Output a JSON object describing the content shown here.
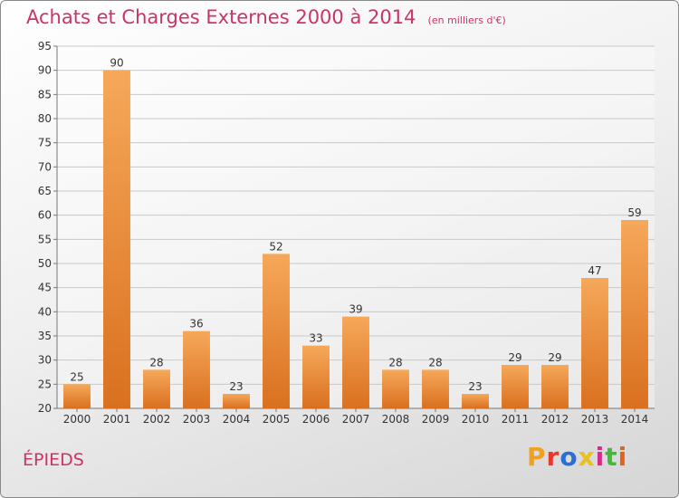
{
  "chart_data": {
    "type": "bar",
    "title": "Achats et Charges Externes 2000 à 2014",
    "subtitle": "(en milliers d'€)",
    "categories": [
      "2000",
      "2001",
      "2002",
      "2003",
      "2004",
      "2005",
      "2006",
      "2007",
      "2008",
      "2009",
      "2010",
      "2011",
      "2012",
      "2013",
      "2014"
    ],
    "values": [
      25,
      90,
      28,
      36,
      23,
      52,
      33,
      39,
      28,
      28,
      23,
      29,
      29,
      47,
      59
    ],
    "ylim": [
      20,
      95
    ],
    "yticks": [
      20,
      25,
      30,
      35,
      40,
      45,
      50,
      55,
      60,
      65,
      70,
      75,
      80,
      85,
      90,
      95
    ],
    "grid": true,
    "legend": "none",
    "bar_colors": {
      "top": "#f6a85a",
      "bottom": "#d9701f"
    }
  },
  "footer": {
    "town": "ÉPIEDS",
    "logo_text": "Proxiti",
    "logo_colors": [
      "#f2a020",
      "#e83a2a",
      "#2a6ed8",
      "#e8c020",
      "#d82a8a",
      "#48b83a",
      "#e8601a"
    ]
  }
}
